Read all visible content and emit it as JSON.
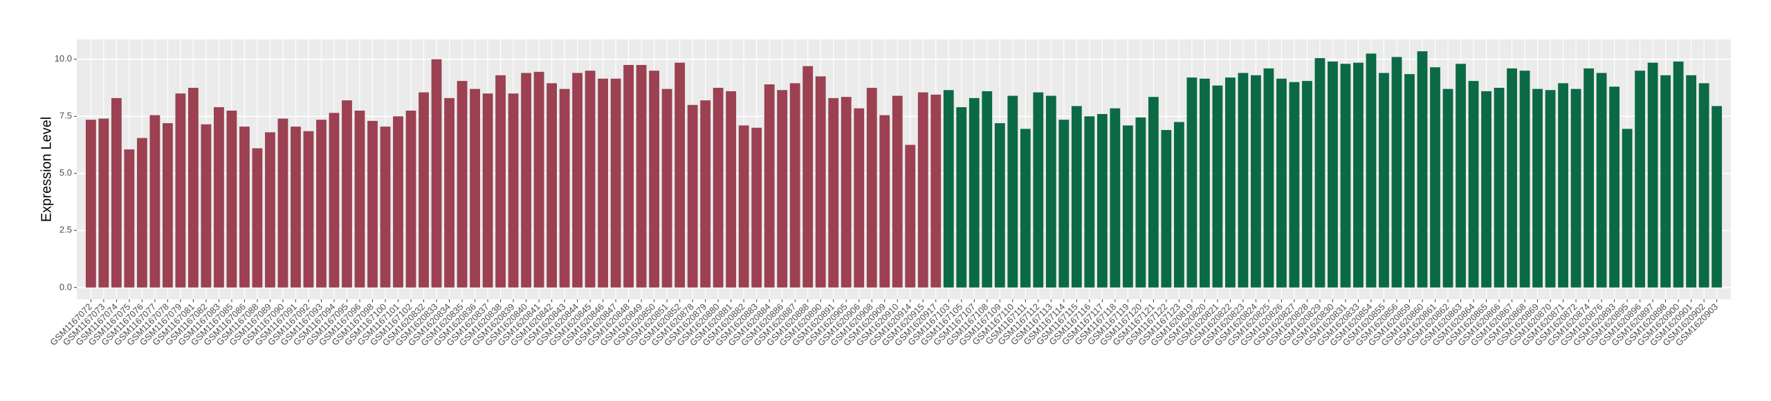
{
  "chart_data": {
    "type": "bar",
    "y_label": "Expression Level",
    "categories": [
      "GSM1167072",
      "GSM1167073",
      "GSM1167074",
      "GSM1167075",
      "GSM1167076",
      "GSM1167077",
      "GSM1167078",
      "GSM1167079",
      "GSM1167081",
      "GSM1167082",
      "GSM1167083",
      "GSM1167085",
      "GSM1167086",
      "GSM1167088",
      "GSM1167089",
      "GSM1167090",
      "GSM1167091",
      "GSM1167092",
      "GSM1167093",
      "GSM1167094",
      "GSM1167095",
      "GSM1167096",
      "GSM1167098",
      "GSM1167100",
      "GSM1167101",
      "GSM1167102",
      "GSM1620832",
      "GSM1620833",
      "GSM1620834",
      "GSM1620835",
      "GSM1620836",
      "GSM1620837",
      "GSM1620838",
      "GSM1620839",
      "GSM1620840",
      "GSM1620841",
      "GSM1620842",
      "GSM1620843",
      "GSM1620844",
      "GSM1620845",
      "GSM1620846",
      "GSM1620847",
      "GSM1620848",
      "GSM1620849",
      "GSM1620850",
      "GSM1620851",
      "GSM1620852",
      "GSM1620878",
      "GSM1620879",
      "GSM1620880",
      "GSM1620881",
      "GSM1620882",
      "GSM1620883",
      "GSM1620884",
      "GSM1620886",
      "GSM1620887",
      "GSM1620888",
      "GSM1620890",
      "GSM1620891",
      "GSM1620905",
      "GSM1620906",
      "GSM1620908",
      "GSM1620909",
      "GSM1620910",
      "GSM1620914",
      "GSM1620915",
      "GSM1620917",
      "GSM1167103",
      "GSM1167105",
      "GSM1167107",
      "GSM1167108",
      "GSM1167109",
      "GSM1167110",
      "GSM1167111",
      "GSM1167112",
      "GSM1167113",
      "GSM1167114",
      "GSM1167115",
      "GSM1167116",
      "GSM1167117",
      "GSM1167118",
      "GSM1167119",
      "GSM1167120",
      "GSM1167121",
      "GSM1167122",
      "GSM1167123",
      "GSM1620819",
      "GSM1620820",
      "GSM1620821",
      "GSM1620822",
      "GSM1620823",
      "GSM1620824",
      "GSM1620825",
      "GSM1620826",
      "GSM1620827",
      "GSM1620828",
      "GSM1620829",
      "GSM1620830",
      "GSM1620831",
      "GSM1620833",
      "GSM1620854",
      "GSM1620855",
      "GSM1620856",
      "GSM1620859",
      "GSM1620860",
      "GSM1620861",
      "GSM1620862",
      "GSM1620863",
      "GSM1620864",
      "GSM1620865",
      "GSM1620866",
      "GSM1620867",
      "GSM1620868",
      "GSM1620869",
      "GSM1620870",
      "GSM1620871",
      "GSM1620872",
      "GSM1620874",
      "GSM1620876",
      "GSM1620893",
      "GSM1620895",
      "GSM1620896",
      "GSM1620897",
      "GSM1620898",
      "GSM1620900",
      "GSM1620901",
      "GSM1620902",
      "GSM1620903"
    ],
    "series": [
      {
        "color": "#9b4152",
        "values": [
          7.35,
          7.4,
          8.3,
          6.05,
          6.55,
          7.55,
          7.2,
          8.5,
          8.75,
          7.15,
          7.9,
          7.75,
          7.05,
          6.1,
          6.8,
          7.4,
          7.05,
          6.85,
          7.35,
          7.65,
          8.2,
          7.75,
          7.3,
          7.05,
          7.5,
          7.75,
          8.55,
          10.0,
          8.3,
          9.05,
          8.7,
          8.5,
          9.3,
          8.5,
          9.4,
          9.45,
          8.95,
          8.7,
          9.4,
          9.5,
          9.15,
          9.15,
          9.75,
          9.75,
          9.5,
          8.7,
          9.85,
          8.0,
          8.2,
          8.75,
          8.6,
          7.1,
          7.0,
          8.9,
          8.65,
          8.95,
          9.7,
          9.25,
          8.3,
          8.35,
          7.85,
          8.75,
          7.55,
          8.4,
          6.25,
          8.55,
          8.45,
          null,
          null,
          null,
          null,
          null,
          null,
          null,
          null,
          null,
          null,
          null,
          null,
          null,
          null,
          null,
          null,
          null,
          null,
          null,
          null,
          null,
          null,
          null,
          null,
          null,
          null,
          null,
          null,
          null,
          null,
          null,
          null,
          null,
          null,
          null,
          null,
          null,
          null,
          null,
          null,
          null,
          null,
          null,
          null,
          null,
          null,
          null,
          null,
          null,
          null,
          null,
          null,
          null,
          null,
          null,
          null,
          null,
          null,
          null,
          null,
          null
        ]
      },
      {
        "color": "#0b6a45",
        "values": [
          null,
          null,
          null,
          null,
          null,
          null,
          null,
          null,
          null,
          null,
          null,
          null,
          null,
          null,
          null,
          null,
          null,
          null,
          null,
          null,
          null,
          null,
          null,
          null,
          null,
          null,
          null,
          null,
          null,
          null,
          null,
          null,
          null,
          null,
          null,
          null,
          null,
          null,
          null,
          null,
          null,
          null,
          null,
          null,
          null,
          null,
          null,
          null,
          null,
          null,
          null,
          null,
          null,
          null,
          null,
          null,
          null,
          null,
          null,
          null,
          null,
          null,
          null,
          null,
          null,
          null,
          null,
          8.65,
          7.9,
          8.3,
          8.6,
          7.2,
          8.4,
          6.95,
          8.55,
          8.4,
          7.35,
          7.95,
          7.5,
          7.6,
          7.85,
          7.1,
          7.45,
          8.35,
          6.9,
          7.25,
          9.2,
          9.15,
          8.85,
          9.2,
          9.4,
          9.3,
          9.6,
          9.15,
          9.0,
          9.05,
          10.05,
          9.9,
          9.8,
          9.85,
          10.25,
          9.4,
          10.1,
          9.35,
          10.35,
          9.65,
          8.7,
          9.8,
          9.05,
          8.6,
          8.75,
          9.6,
          9.5,
          8.7,
          8.65,
          8.95,
          8.7,
          9.6,
          9.4,
          8.8,
          6.95,
          9.5,
          9.85,
          9.3,
          9.9,
          9.3,
          8.95,
          7.95
        ]
      }
    ],
    "ylim": [
      -0.52,
      10.87
    ],
    "yticks": [
      {
        "value": 0,
        "label": "0.0"
      },
      {
        "value": 2.5,
        "label": "2.5"
      },
      {
        "value": 5,
        "label": "5.0"
      },
      {
        "value": 7.5,
        "label": "7.5"
      },
      {
        "value": 10,
        "label": "10.0"
      }
    ],
    "grid": true
  }
}
